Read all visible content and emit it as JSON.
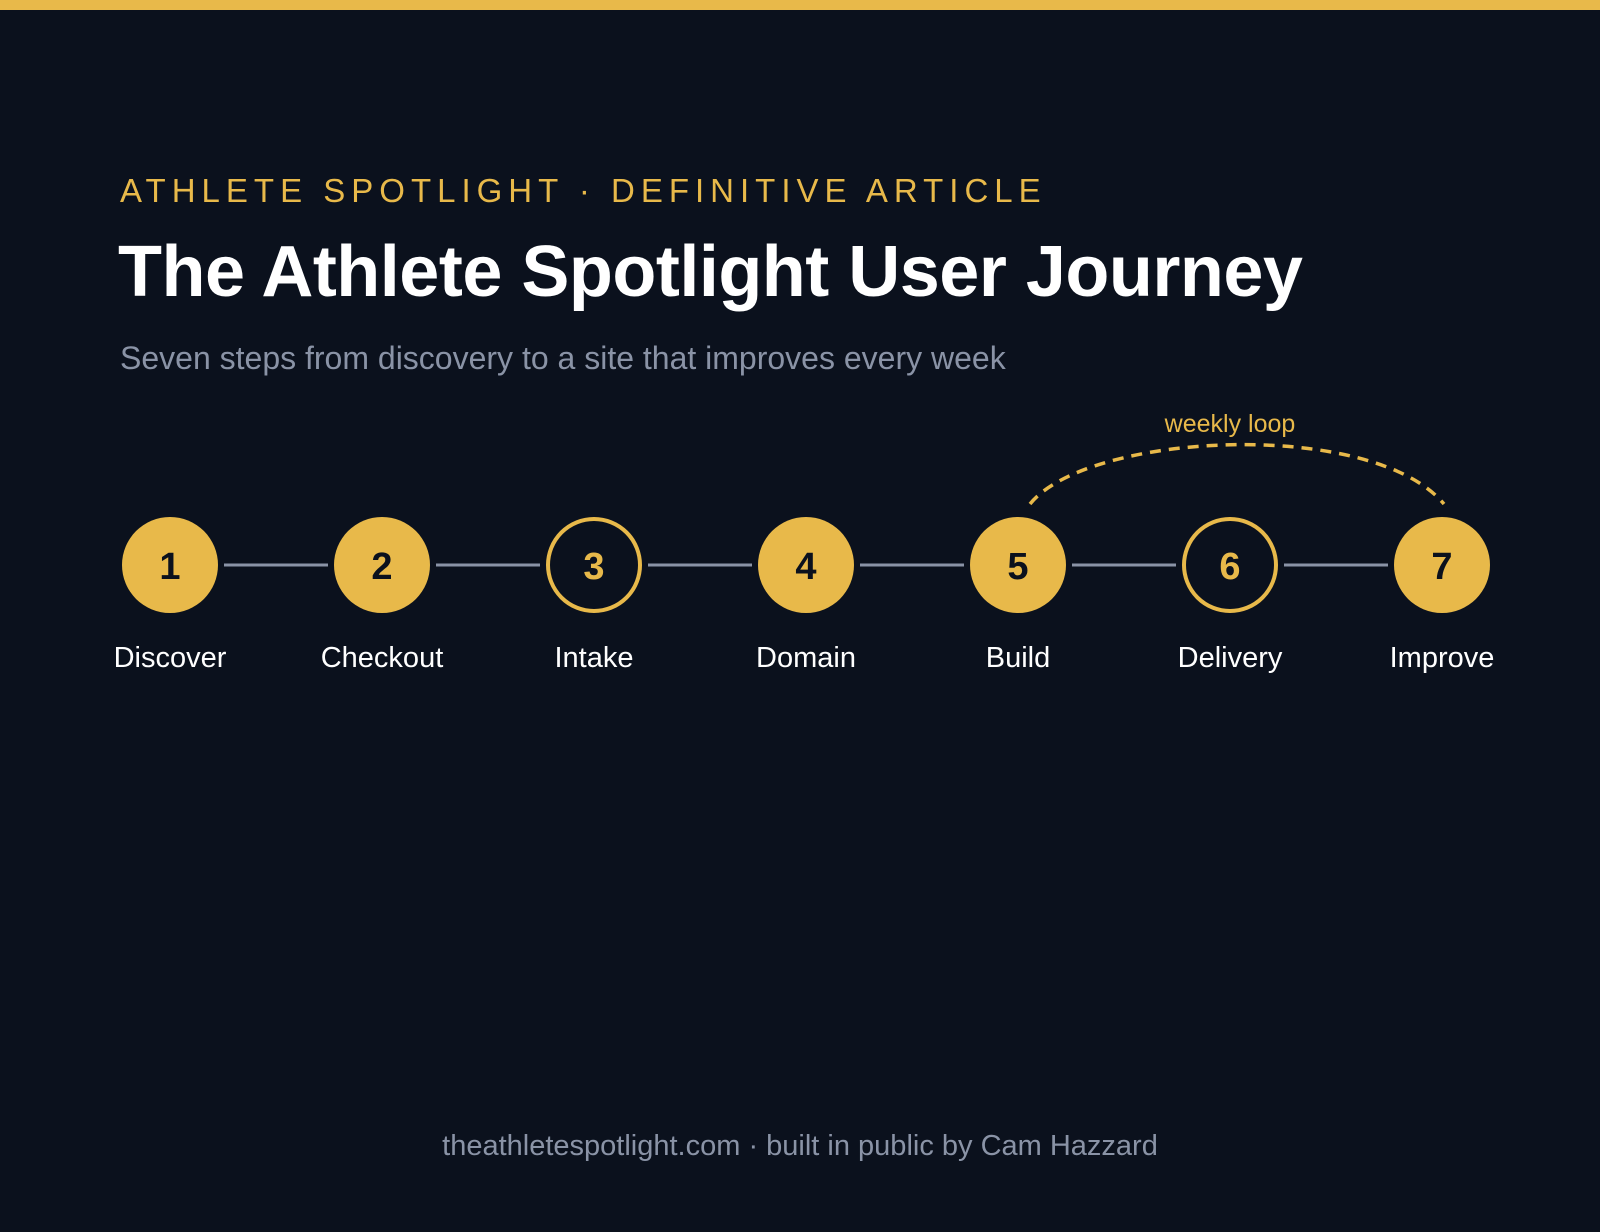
{
  "header": {
    "eyebrow": "ATHLETE SPOTLIGHT · DEFINITIVE ARTICLE",
    "title": "The Athlete Spotlight User Journey",
    "subtitle": "Seven steps from discovery to a site that improves every week"
  },
  "colors": {
    "background": "#0b111d",
    "accent": "#e8b94a",
    "connector": "#8a93a6",
    "text_primary": "#ffffff",
    "text_muted": "#8a93a6",
    "number_on_filled": "#0b111d"
  },
  "steps": [
    {
      "number": "1",
      "label": "Discover",
      "style": "filled"
    },
    {
      "number": "2",
      "label": "Checkout",
      "style": "filled"
    },
    {
      "number": "3",
      "label": "Intake",
      "style": "outline"
    },
    {
      "number": "4",
      "label": "Domain",
      "style": "filled"
    },
    {
      "number": "5",
      "label": "Build",
      "style": "filled"
    },
    {
      "number": "6",
      "label": "Delivery",
      "style": "outline"
    },
    {
      "number": "7",
      "label": "Improve",
      "style": "filled"
    }
  ],
  "loop": {
    "label": "weekly loop",
    "from_step": 5,
    "to_step": 7
  },
  "footer": {
    "text": "theathletespotlight.com · built in public by Cam Hazzard"
  }
}
